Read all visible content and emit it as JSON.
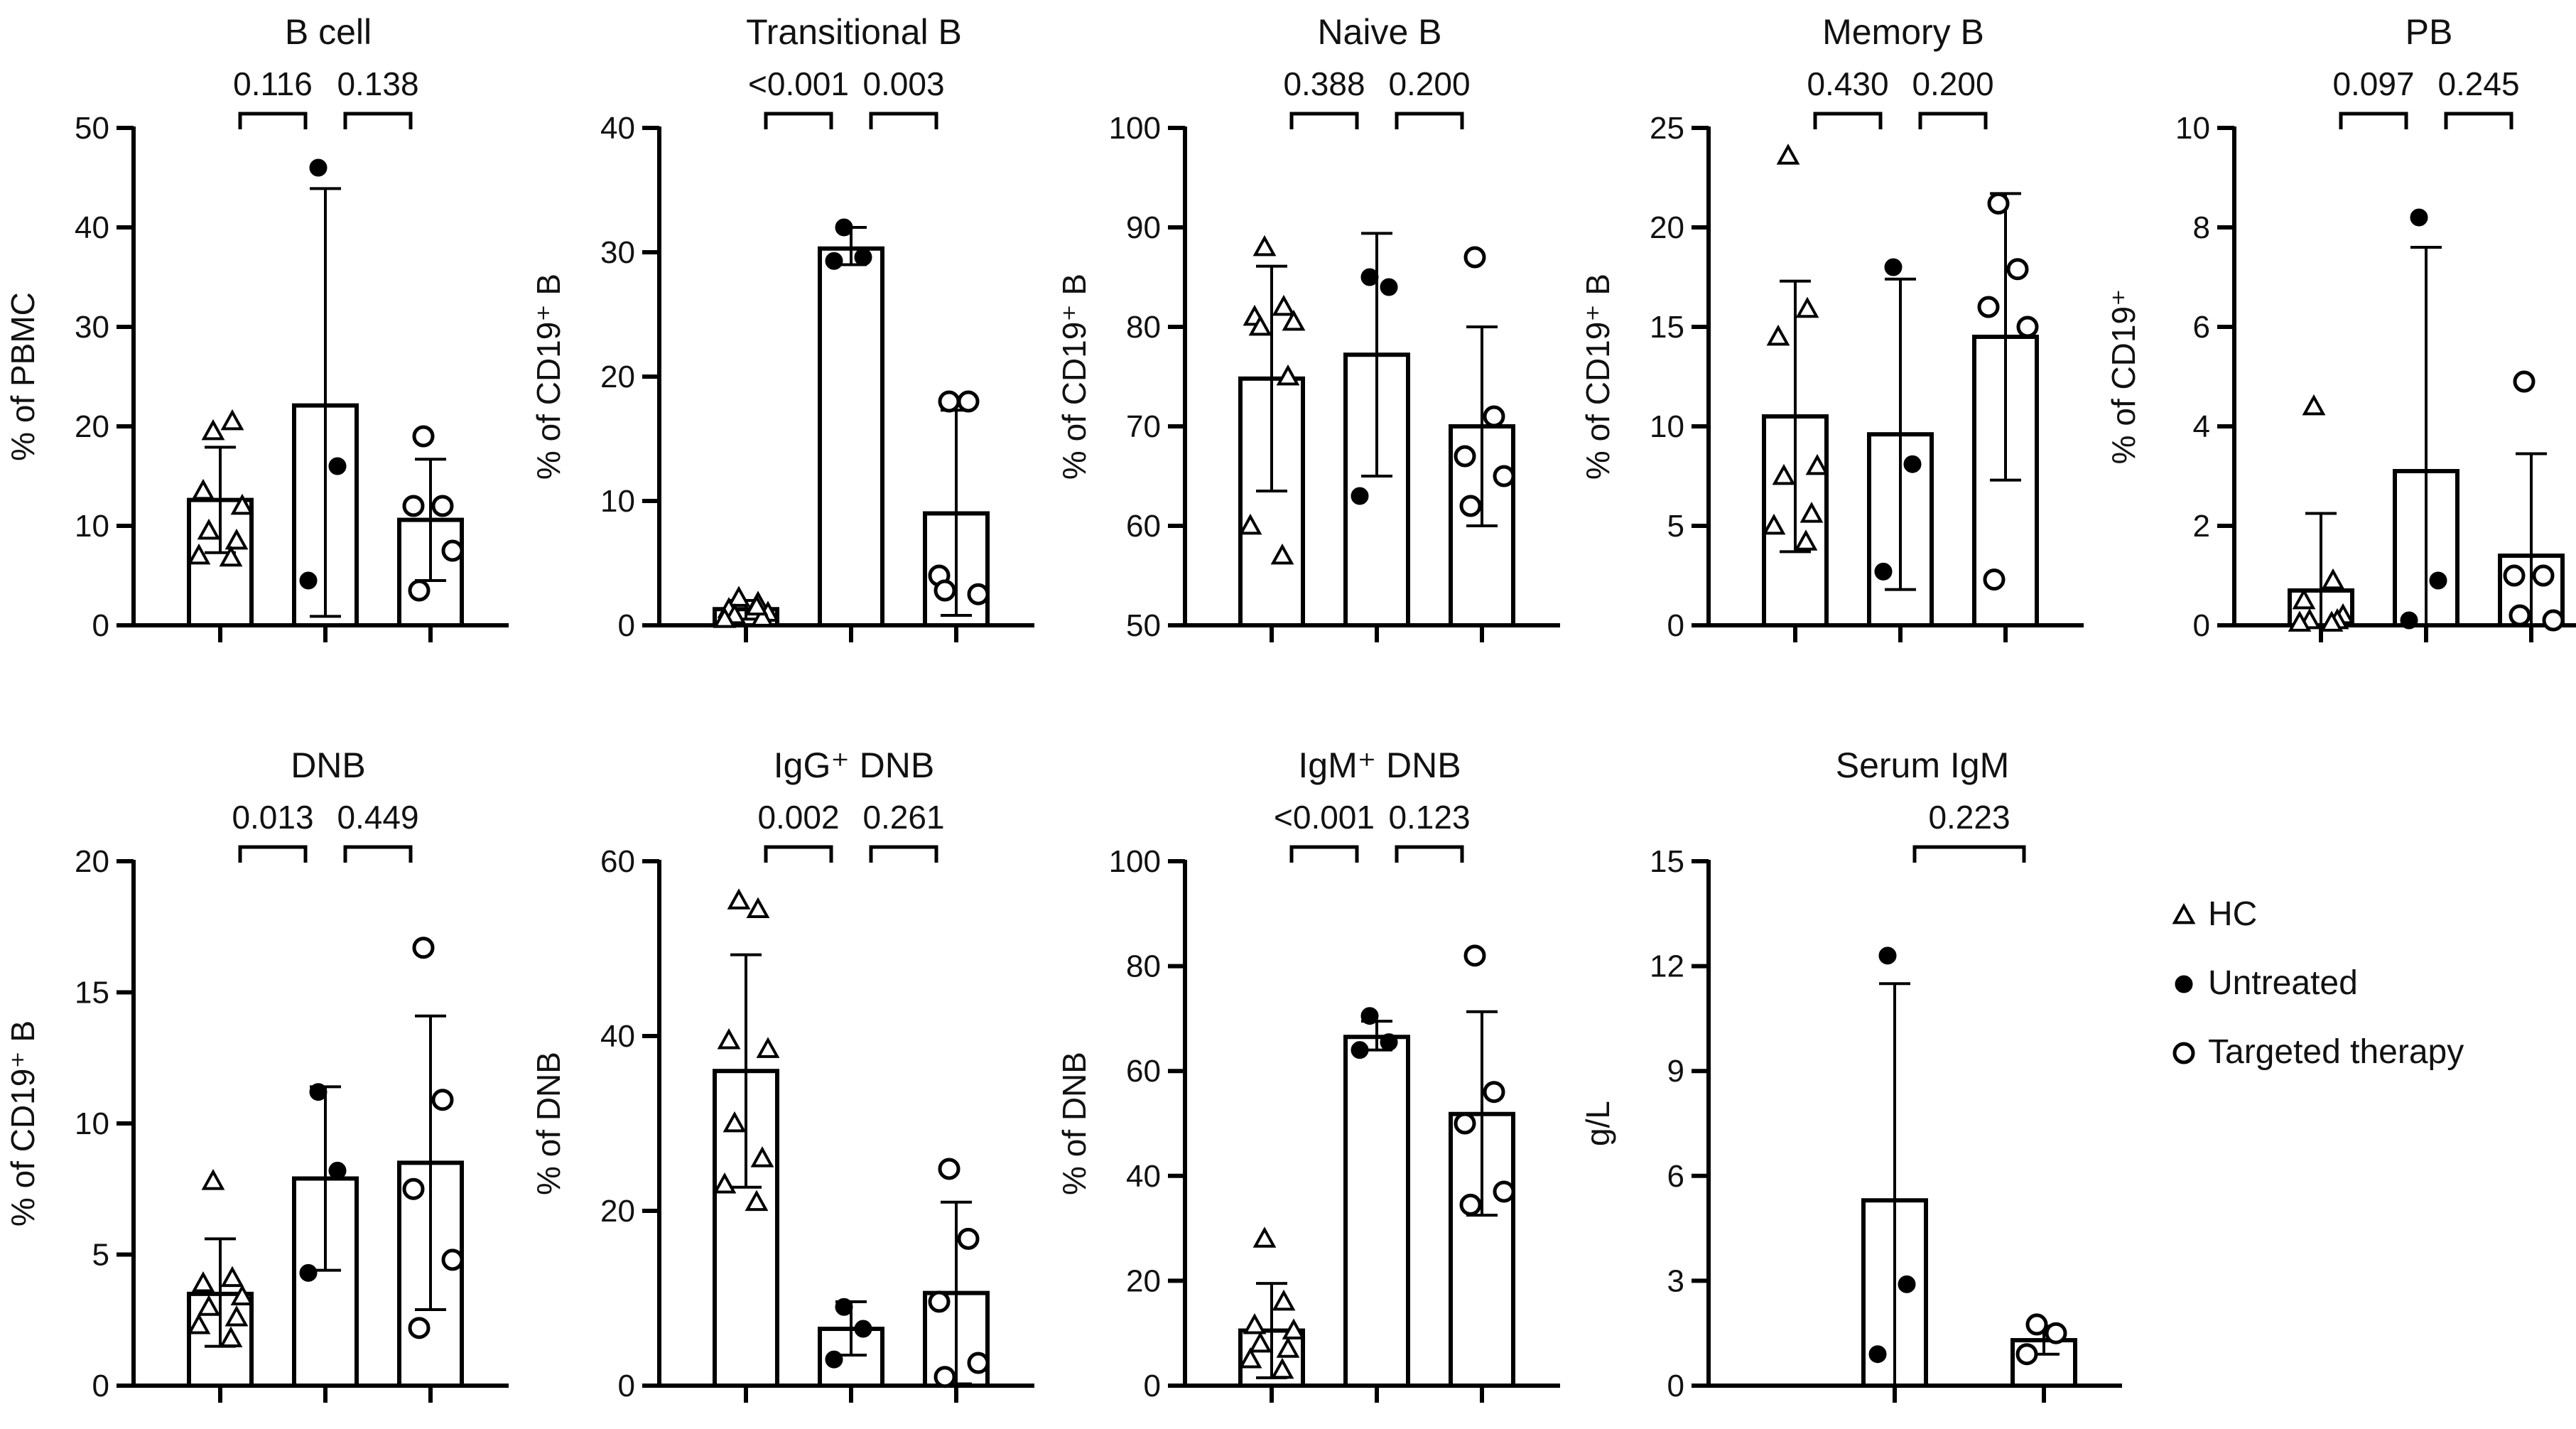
{
  "legend": {
    "items": [
      {
        "marker": "triangle",
        "label": "HC"
      },
      {
        "marker": "filled-circle",
        "label": "Untreated"
      },
      {
        "marker": "open-circle",
        "label": "Targeted therapy"
      }
    ]
  },
  "chart_data": [
    {
      "type": "bar",
      "title": "B cell",
      "ylabel": "% of PBMC",
      "ylim": [
        0,
        50
      ],
      "yticks": [
        "0",
        "10",
        "20",
        "30",
        "40",
        "50"
      ],
      "groups": [
        {
          "name": "HC",
          "marker": "triangle",
          "mean": 12.6,
          "err": [
            7.3,
            17.9
          ],
          "points": [
            19.5,
            20.5,
            13.5,
            12.0,
            9.5,
            8.5,
            7.0,
            6.8
          ]
        },
        {
          "name": "Untreated",
          "marker": "filled-circle",
          "mean": 22.1,
          "err": [
            0.9,
            43.9
          ],
          "points": [
            46.0,
            16.0,
            4.5
          ]
        },
        {
          "name": "Targeted therapy",
          "marker": "open-circle",
          "mean": 10.6,
          "err": [
            4.5,
            16.7
          ],
          "points": [
            19.0,
            12.0,
            12.0,
            7.5,
            3.5
          ]
        }
      ],
      "comparisons": [
        {
          "from": 0,
          "to": 1,
          "label": "0.116"
        },
        {
          "from": 1,
          "to": 2,
          "label": "0.138"
        }
      ]
    },
    {
      "type": "bar",
      "title": "Transitional  B",
      "ylabel": "% of CD19⁺ B",
      "ylim": [
        0,
        40
      ],
      "yticks": [
        "0",
        "10",
        "20",
        "30",
        "40"
      ],
      "groups": [
        {
          "name": "HC",
          "marker": "triangle",
          "mean": 1.3,
          "err": [
            0.5,
            2.0
          ],
          "points": [
            2.2,
            1.8,
            1.3,
            1.0,
            0.8,
            0.6,
            0.5,
            1.5
          ]
        },
        {
          "name": "Untreated",
          "marker": "filled-circle",
          "mean": 30.3,
          "err": [
            29.0,
            32.0
          ],
          "points": [
            32.0,
            29.6,
            29.3
          ]
        },
        {
          "name": "Targeted therapy",
          "marker": "open-circle",
          "mean": 9.0,
          "err": [
            0.8,
            17.3
          ],
          "points": [
            18.0,
            18.0,
            4.0,
            2.5,
            2.8
          ]
        }
      ],
      "comparisons": [
        {
          "from": 0,
          "to": 1,
          "label": "<0.001"
        },
        {
          "from": 1,
          "to": 2,
          "label": "0.003"
        }
      ]
    },
    {
      "type": "bar",
      "title": "Naive  B",
      "ylabel": "% of CD19⁺ B",
      "ylim": [
        50,
        100
      ],
      "yticks": [
        "50",
        "60",
        "70",
        "80",
        "90",
        "100"
      ],
      "groups": [
        {
          "name": "HC",
          "marker": "triangle",
          "mean": 74.8,
          "err": [
            63.5,
            86.1
          ],
          "points": [
            88.0,
            82.0,
            81.0,
            80.5,
            80.0,
            75.0,
            60.0,
            57.0
          ]
        },
        {
          "name": "Untreated",
          "marker": "filled-circle",
          "mean": 77.2,
          "err": [
            65.0,
            89.4
          ],
          "points": [
            85.0,
            84.0,
            63.0
          ]
        },
        {
          "name": "Targeted therapy",
          "marker": "open-circle",
          "mean": 70.0,
          "err": [
            60.0,
            80.0
          ],
          "points": [
            87.0,
            71.0,
            67.0,
            65.0,
            62.0
          ]
        }
      ],
      "comparisons": [
        {
          "from": 0,
          "to": 1,
          "label": "0.388"
        },
        {
          "from": 1,
          "to": 2,
          "label": "0.200"
        }
      ]
    },
    {
      "type": "bar",
      "title": "Memory B",
      "ylabel": "% of CD19⁺ B",
      "ylim": [
        0,
        25
      ],
      "yticks": [
        "0",
        "5",
        "10",
        "15",
        "20",
        "25"
      ],
      "groups": [
        {
          "name": "HC",
          "marker": "triangle",
          "mean": 10.5,
          "err": [
            3.7,
            17.3
          ],
          "points": [
            23.6,
            15.9,
            14.5,
            8.0,
            7.5,
            5.6,
            5.0,
            4.2
          ]
        },
        {
          "name": "Untreated",
          "marker": "filled-circle",
          "mean": 9.6,
          "err": [
            1.8,
            17.4
          ],
          "points": [
            18.0,
            8.1,
            2.7
          ]
        },
        {
          "name": "Targeted therapy",
          "marker": "open-circle",
          "mean": 14.5,
          "err": [
            7.3,
            21.7
          ],
          "points": [
            21.2,
            17.9,
            16.0,
            15.0,
            2.3
          ]
        }
      ],
      "comparisons": [
        {
          "from": 0,
          "to": 1,
          "label": "0.430"
        },
        {
          "from": 1,
          "to": 2,
          "label": "0.200"
        }
      ]
    },
    {
      "type": "bar",
      "title": "PB",
      "ylabel": "% of CD19⁺",
      "ylim": [
        0,
        10
      ],
      "yticks": [
        "0",
        "2",
        "4",
        "6",
        "8",
        "10"
      ],
      "groups": [
        {
          "name": "HC",
          "marker": "triangle",
          "mean": 0.7,
          "err": [
            0,
            2.25
          ],
          "points": [
            4.4,
            0.9,
            0.5,
            0.2,
            0.1,
            0.1,
            0.05,
            0.05
          ]
        },
        {
          "name": "Untreated",
          "marker": "filled-circle",
          "mean": 3.1,
          "err": [
            0,
            7.6
          ],
          "points": [
            8.2,
            0.9,
            0.1
          ]
        },
        {
          "name": "Targeted therapy",
          "marker": "open-circle",
          "mean": 1.4,
          "err": [
            0,
            3.45
          ],
          "points": [
            4.9,
            1.0,
            1.0,
            0.1,
            0.2
          ]
        }
      ],
      "comparisons": [
        {
          "from": 0,
          "to": 1,
          "label": "0.097"
        },
        {
          "from": 1,
          "to": 2,
          "label": "0.245"
        }
      ]
    },
    {
      "type": "bar",
      "title": "DNB",
      "ylabel": "% of CD19⁺ B",
      "ylim": [
        0,
        20
      ],
      "yticks": [
        "0",
        "5",
        "10",
        "15",
        "20"
      ],
      "groups": [
        {
          "name": "HC",
          "marker": "triangle",
          "mean": 3.5,
          "err": [
            1.5,
            5.6
          ],
          "points": [
            7.8,
            4.1,
            3.9,
            3.4,
            3.0,
            2.6,
            2.3,
            1.8
          ]
        },
        {
          "name": "Untreated",
          "marker": "filled-circle",
          "mean": 7.9,
          "err": [
            4.4,
            11.4
          ],
          "points": [
            11.2,
            8.2,
            4.3
          ]
        },
        {
          "name": "Targeted therapy",
          "marker": "open-circle",
          "mean": 8.5,
          "err": [
            2.9,
            14.1
          ],
          "points": [
            16.7,
            10.9,
            7.5,
            4.8,
            2.2
          ]
        }
      ],
      "comparisons": [
        {
          "from": 0,
          "to": 1,
          "label": "0.013"
        },
        {
          "from": 1,
          "to": 2,
          "label": "0.449"
        }
      ]
    },
    {
      "type": "bar",
      "title": "IgG⁺ DNB",
      "ylabel": "% of DNB",
      "ylim": [
        0,
        60
      ],
      "yticks": [
        "0",
        "20",
        "40",
        "60"
      ],
      "groups": [
        {
          "name": "HC",
          "marker": "triangle",
          "mean": 36.0,
          "err": [
            22.7,
            49.3
          ],
          "points": [
            55.5,
            54.5,
            39.5,
            38.5,
            30.0,
            26.0,
            23.0,
            21.0
          ]
        },
        {
          "name": "Untreated",
          "marker": "filled-circle",
          "mean": 6.5,
          "err": [
            3.5,
            9.6
          ],
          "points": [
            9.0,
            6.5,
            3.0
          ]
        },
        {
          "name": "Targeted therapy",
          "marker": "open-circle",
          "mean": 10.6,
          "err": [
            0.2,
            21.0
          ],
          "points": [
            24.8,
            16.8,
            9.6,
            2.6,
            1.0
          ]
        }
      ],
      "comparisons": [
        {
          "from": 0,
          "to": 1,
          "label": "0.002"
        },
        {
          "from": 1,
          "to": 2,
          "label": "0.261"
        }
      ]
    },
    {
      "type": "bar",
      "title": "IgM⁺ DNB",
      "ylabel": "% of DNB",
      "ylim": [
        0,
        100
      ],
      "yticks": [
        "0",
        "20",
        "40",
        "60",
        "80",
        "100"
      ],
      "groups": [
        {
          "name": "HC",
          "marker": "triangle",
          "mean": 10.5,
          "err": [
            1.5,
            19.5
          ],
          "points": [
            28.0,
            16.0,
            11.5,
            10.5,
            8.0,
            7.0,
            5.0,
            3.0
          ]
        },
        {
          "name": "Untreated",
          "marker": "filled-circle",
          "mean": 66.5,
          "err": [
            64.0,
            69.5
          ],
          "points": [
            70.5,
            65.5,
            64.0
          ]
        },
        {
          "name": "Targeted therapy",
          "marker": "open-circle",
          "mean": 51.8,
          "err": [
            32.5,
            71.3
          ],
          "points": [
            82.0,
            56.0,
            50.0,
            37.0,
            34.5
          ]
        }
      ],
      "comparisons": [
        {
          "from": 0,
          "to": 1,
          "label": "<0.001"
        },
        {
          "from": 1,
          "to": 2,
          "label": "0.123"
        }
      ]
    },
    {
      "type": "bar",
      "title": "Serum IgM",
      "ylabel": "g/L",
      "ylim": [
        0,
        15
      ],
      "yticks": [
        "0",
        "3",
        "6",
        "9",
        "12",
        "15"
      ],
      "groups": [
        {
          "name": "Untreated",
          "marker": "filled-circle",
          "mean": 5.3,
          "err": [
            0,
            11.5
          ],
          "points": [
            12.3,
            2.9,
            0.9
          ]
        },
        {
          "name": "Targeted therapy",
          "marker": "open-circle",
          "mean": 1.3,
          "err": [
            0.9,
            1.7
          ],
          "points": [
            1.75,
            1.5,
            0.9
          ]
        }
      ],
      "comparisons": [
        {
          "from": 0,
          "to": 1,
          "label": "0.223"
        }
      ]
    }
  ]
}
